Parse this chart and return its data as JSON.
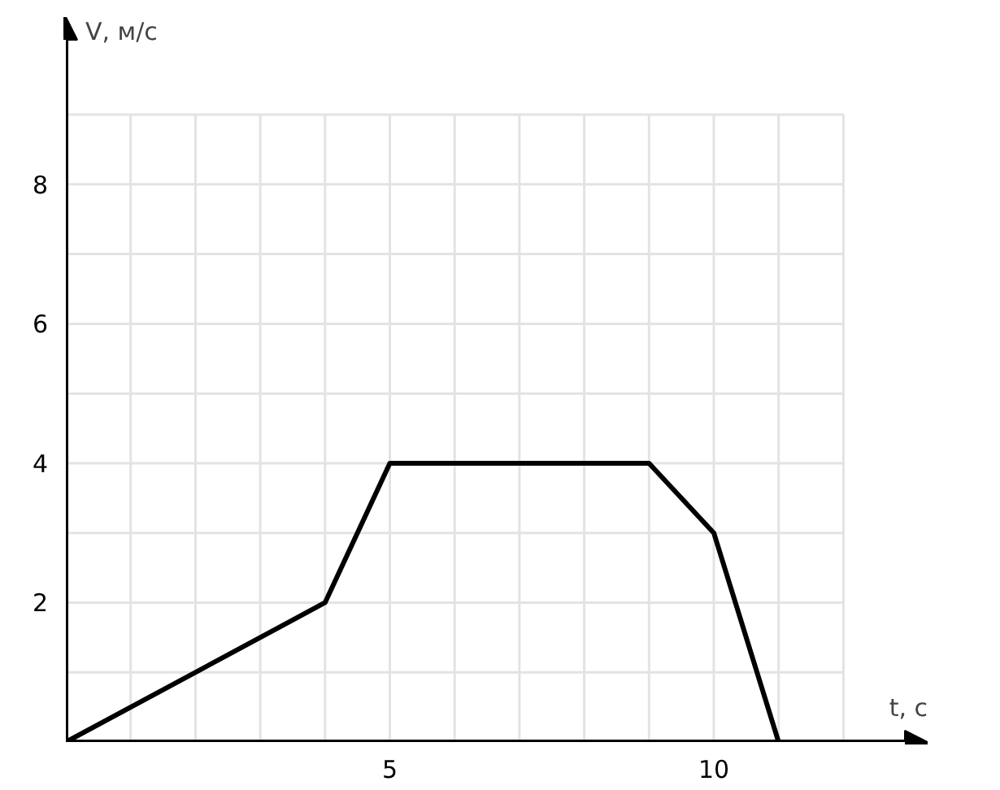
{
  "chart_data": {
    "type": "line",
    "xlabel": "t, с",
    "ylabel": "V, м/с",
    "x": [
      0,
      4,
      5,
      9,
      10,
      11
    ],
    "series": [
      {
        "color": "#000000",
        "values": [
          0,
          2,
          4,
          4,
          3,
          0
        ]
      }
    ],
    "xlim": [
      0,
      13.3
    ],
    "ylim": [
      0,
      10.4
    ],
    "xticks": [
      {
        "value": 0,
        "label": null
      },
      {
        "value": 1,
        "label": null
      },
      {
        "value": 2,
        "label": null
      },
      {
        "value": 3,
        "label": null
      },
      {
        "value": 4,
        "label": null
      },
      5,
      {
        "value": 6,
        "label": null
      },
      {
        "value": 7,
        "label": null
      },
      {
        "value": 8,
        "label": null
      },
      {
        "value": 9,
        "label": null
      },
      10,
      {
        "value": 11,
        "label": null
      },
      {
        "value": 12,
        "label": null
      }
    ],
    "yticks": [
      {
        "value": 0,
        "label": null
      },
      {
        "value": 1,
        "label": null
      },
      2,
      {
        "value": 3,
        "label": null
      },
      4,
      {
        "value": 5,
        "label": null
      },
      6,
      {
        "value": 7,
        "label": null
      },
      8,
      {
        "value": 9,
        "label": null
      }
    ],
    "grid": true,
    "line_style": "solid",
    "marker": "none"
  }
}
